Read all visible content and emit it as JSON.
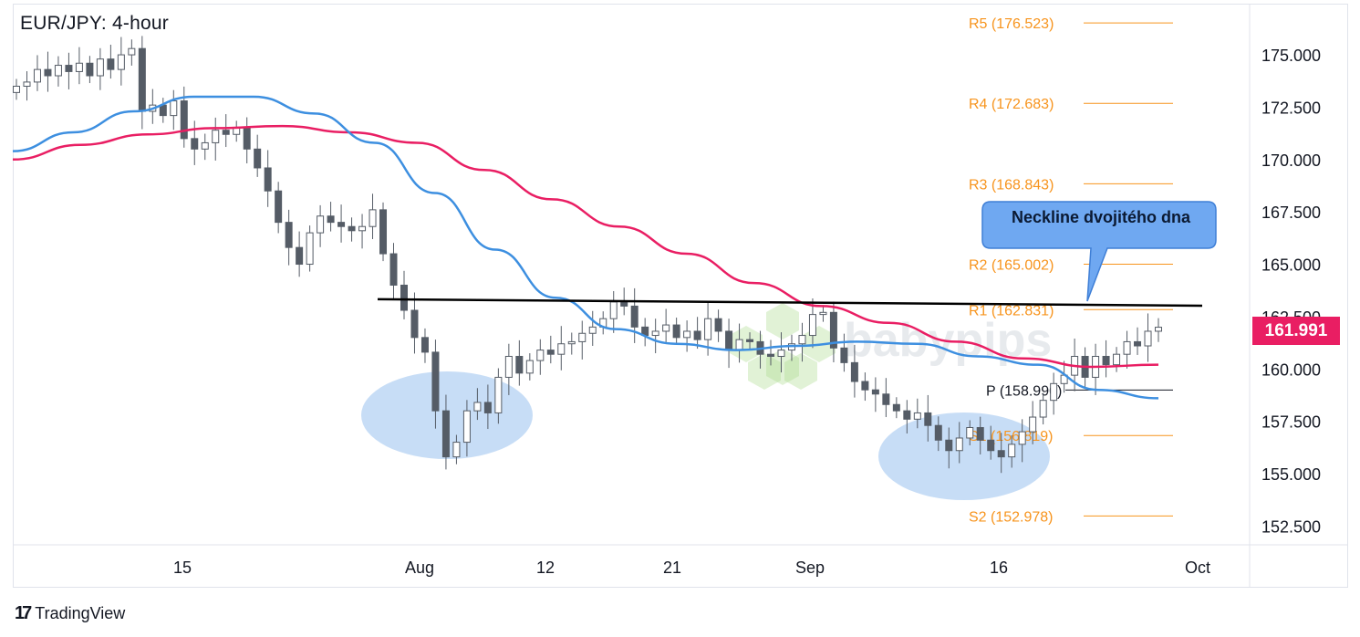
{
  "header": {
    "title": "EUR/JPY: 4-hour"
  },
  "last_price": {
    "value": "161.991",
    "color": "#e91e63"
  },
  "branding": {
    "text": "TradingView",
    "logo": "17"
  },
  "colors": {
    "up": "#26a69a",
    "down": "#ef5350",
    "candle": "#555c66",
    "sma_fast": "#3d8fe0",
    "sma_slow": "#e91e63",
    "pivot": "#f7941d",
    "neckline": "#000000",
    "ellipse": "#bdd7f5",
    "callout": "#6fa8f1"
  },
  "annotations": {
    "callout_text": "Neckline dvojitého dna",
    "watermark": "babypips"
  },
  "chart_data": {
    "type": "candlestick",
    "title": "EUR/JPY: 4-hour",
    "x_ticks": [
      "15",
      "Aug",
      "12",
      "21",
      "Sep",
      "16",
      "Oct"
    ],
    "y_ticks": [
      "152.500",
      "155.000",
      "157.500",
      "160.000",
      "162.500",
      "165.000",
      "167.500",
      "170.000",
      "172.500",
      "175.000"
    ],
    "ylim": [
      151.6,
      177.4
    ],
    "pivots": [
      {
        "label": "R5 (176.523)",
        "value": 176.523
      },
      {
        "label": "R4 (172.683)",
        "value": 172.683
      },
      {
        "label": "R3 (168.843)",
        "value": 168.843
      },
      {
        "label": "R2 (165.002)",
        "value": 165.002
      },
      {
        "label": "R1 (162.831)",
        "value": 162.831
      },
      {
        "label": "P (158.990)",
        "value": 158.99
      },
      {
        "label": "S1 (156.819)",
        "value": 156.819
      },
      {
        "label": "S2 (152.978)",
        "value": 152.978
      }
    ],
    "neckline": {
      "value": 163.0,
      "x_start": "Jul 29",
      "x_end": "Sep 30"
    },
    "last_close": 161.991,
    "closes": [
      173.5,
      173.7,
      174.3,
      174.0,
      174.5,
      174.2,
      174.6,
      174.0,
      174.8,
      174.3,
      175.0,
      175.3,
      172.3,
      172.6,
      172.1,
      172.8,
      171.0,
      170.5,
      170.8,
      171.4,
      171.2,
      171.5,
      170.5,
      169.6,
      168.5,
      167.0,
      165.8,
      165.0,
      166.5,
      167.3,
      167.0,
      166.8,
      166.6,
      166.8,
      167.6,
      165.5,
      164.0,
      162.8,
      161.5,
      160.8,
      158.0,
      155.8,
      156.5,
      158.0,
      158.4,
      157.9,
      159.6,
      160.6,
      159.8,
      160.4,
      160.9,
      160.7,
      161.2,
      161.3,
      161.7,
      162.0,
      162.4,
      163.2,
      163.0,
      162.0,
      161.6,
      161.8,
      162.1,
      161.5,
      161.8,
      161.4,
      162.4,
      161.8,
      160.9,
      161.4,
      161.3,
      160.7,
      160.6,
      160.9,
      161.2,
      161.6,
      162.6,
      162.7,
      161.0,
      160.3,
      159.4,
      159.0,
      158.8,
      158.3,
      158.0,
      157.6,
      157.9,
      157.3,
      156.6,
      156.1,
      156.7,
      157.2,
      156.6,
      156.1,
      155.8,
      156.4,
      157.0,
      157.7,
      158.5,
      159.3,
      159.7,
      160.6,
      159.6,
      160.6,
      160.2,
      160.7,
      161.3,
      161.1,
      161.8,
      161.991
    ],
    "sma_fast": [
      170.4,
      171.3,
      172.3,
      173.0,
      173.0,
      172.2,
      170.8,
      168.4,
      165.7,
      163.4,
      161.9,
      161.2,
      160.9,
      161.1,
      161.3,
      161.2,
      160.6,
      160.2,
      159.0,
      158.6
    ],
    "sma_slow": [
      170.0,
      170.7,
      171.2,
      171.5,
      171.6,
      171.3,
      170.8,
      169.5,
      168.1,
      166.8,
      165.5,
      164.1,
      163.0,
      162.2,
      161.3,
      160.5,
      160.1,
      160.2
    ]
  }
}
